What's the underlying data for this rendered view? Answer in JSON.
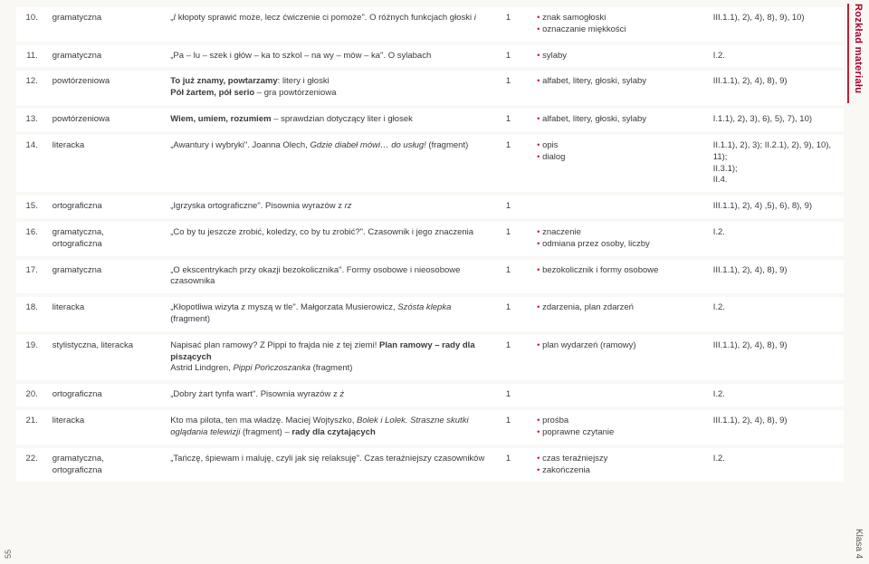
{
  "sideLabels": {
    "topRight": "Rozkład materiału",
    "bottomRight": "Klasa 4",
    "bottomLeft": "55"
  },
  "rows": [
    {
      "num": "10.",
      "type": "gramatyczna",
      "topic": "„<i>I</i> kłopoty sprawić może, lecz ćwiczenie ci pomoże\". O różnych funkcjach głoski <i>i</i>",
      "hrs": "1",
      "goals": [
        "znak samogłoski",
        "oznaczanie miękkości"
      ],
      "refs": "III.1.1), 2), 4), 8), 9), 10)"
    },
    {
      "num": "11.",
      "type": "gramatyczna",
      "topic": "„Pa – lu – szek i głów – ka to szkol – na wy – mów – ka\". O sylabach",
      "hrs": "1",
      "goals": [
        "sylaby"
      ],
      "refs": "I.2."
    },
    {
      "num": "12.",
      "type": "powtórzeniowa",
      "topic": "<b>To już znamy, powtarzamy</b>: litery i głoski<br><b>Pół żartem, pół serio</b> – gra powtórzeniowa",
      "hrs": "1",
      "goals": [
        "alfabet, litery, głoski, sylaby"
      ],
      "refs": "III.1.1), 2), 4), 8), 9)"
    },
    {
      "num": "13.",
      "type": "powtórzeniowa",
      "topic": "<b>Wiem, umiem, rozumiem</b> – sprawdzian dotyczący liter i głosek",
      "hrs": "1",
      "goals": [
        "alfabet, litery, głoski, sylaby"
      ],
      "refs": "I.1.1), 2), 3), 6), 5), 7), 10)"
    },
    {
      "num": "14.",
      "type": "literacka",
      "topic": "„Awantury i wybryki\". Joanna Olech, <i>Gdzie diabeł mówi… do usług!</i> (fragment)",
      "hrs": "1",
      "goals": [
        "opis",
        "dialog"
      ],
      "refs": "II.1.1), 2), 3); II.2.1), 2), 9), 10), 11);<br>II.3.1);<br>II.4."
    },
    {
      "num": "15.",
      "type": "ortograficzna",
      "topic": "„Igrzyska ortograficzne\". Pisownia wyrazów z <i>rz</i>",
      "hrs": "1",
      "goals": [],
      "refs": "III.1.1), 2), 4) ,5), 6), 8), 9)"
    },
    {
      "num": "16.",
      "type": "gramatyczna, ortograficzna",
      "topic": "„Co by tu jeszcze zrobić, koledzy, co by tu zrobić?\". Czasownik i jego znaczenia",
      "hrs": "1",
      "goals": [
        "znaczenie",
        "odmiana przez osoby, liczby"
      ],
      "refs": "I.2."
    },
    {
      "num": "17.",
      "type": "gramatyczna",
      "topic": "„O ekscentrykach przy okazji bezokolicznika\". Formy osobowe i nieosobowe czasownika",
      "hrs": "1",
      "goals": [
        "bezokolicznik i formy osobowe"
      ],
      "refs": "III.1.1), 2), 4), 8), 9)"
    },
    {
      "num": "18.",
      "type": "literacka",
      "topic": "„Kłopotliwa wizyta z myszą w tle\". Małgorzata Musierowicz, <i>Szósta klepka</i> (fragment)",
      "hrs": "1",
      "goals": [
        "zdarzenia, plan zdarzeń"
      ],
      "refs": "I.2."
    },
    {
      "num": "19.",
      "type": "stylistyczna, literacka",
      "topic": "Napisać plan ramowy? Z Pippi to frajda nie z tej ziemi! <b>Plan ramowy – rady dla piszących</b><br>Astrid Lindgren, <i>Pippi Pończoszanka</i> (fragment)",
      "hrs": "1",
      "goals": [
        "plan wydarzeń (ramowy)"
      ],
      "refs": "III.1.1), 2), 4), 8), 9)"
    },
    {
      "num": "20.",
      "type": "ortograficzna",
      "topic": "„Dobry żart tynfa wart\". Pisownia wyrazów z <i>ż</i>",
      "hrs": "1",
      "goals": [],
      "refs": "I.2."
    },
    {
      "num": "21.",
      "type": "literacka",
      "topic": "Kto ma pilota, ten ma władzę. Maciej Wojtyszko, <i>Bolek i Lolek. Straszne skutki oglądania telewizji</i> (fragment) – <b>rady dla czytających</b>",
      "hrs": "1",
      "goals": [
        "prośba",
        "poprawne czytanie"
      ],
      "refs": "III.1.1), 2), 4), 8), 9)"
    },
    {
      "num": "22.",
      "type": "gramatyczna, ortograficzna",
      "topic": "„Tańczę, śpiewam i maluję, czyli jak się relaksuję\". Czas teraźniejszy czasowników",
      "hrs": "1",
      "goals": [
        "czas teraźniejszy",
        "zakończenia"
      ],
      "refs": "I.2."
    }
  ]
}
